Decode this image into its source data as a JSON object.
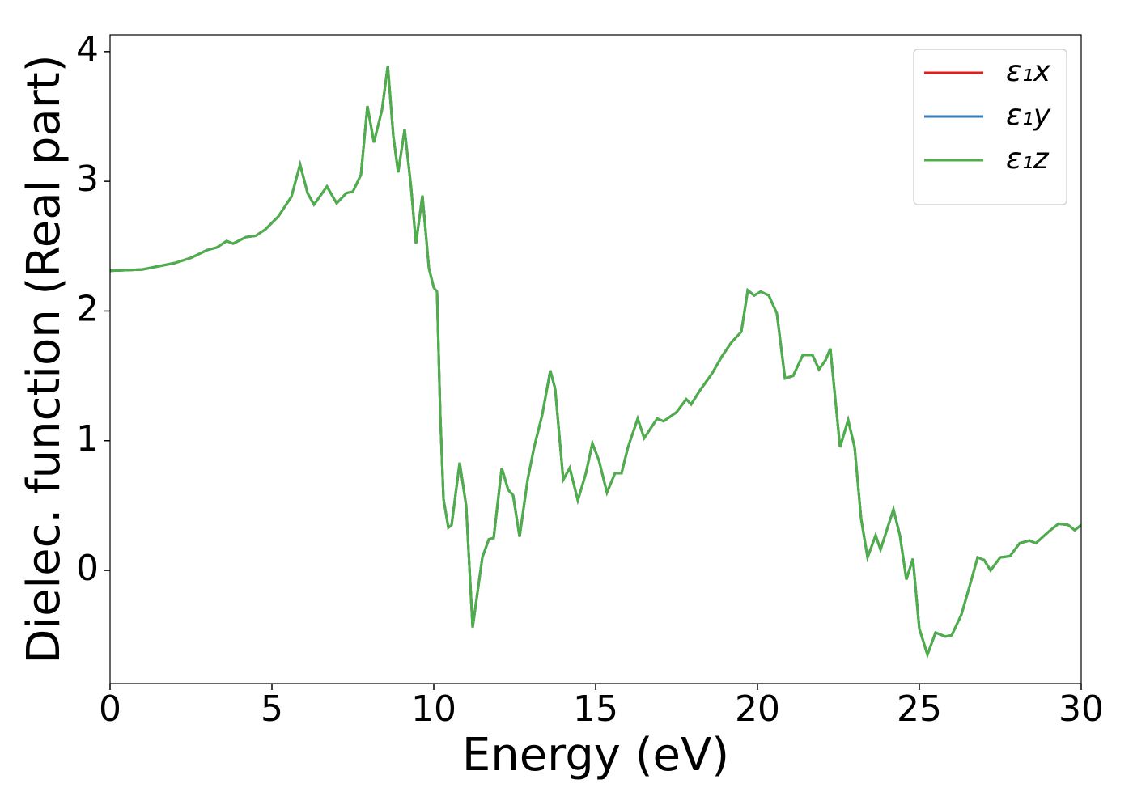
{
  "chart_data": {
    "type": "line",
    "xlabel": "Energy (eV)",
    "ylabel": "Dielec. function (Real part)",
    "x": [
      0,
      1,
      2,
      2.5,
      3,
      3.3,
      3.6,
      3.8,
      4.2,
      4.5,
      4.8,
      5.2,
      5.6,
      5.87,
      6.1,
      6.3,
      6.7,
      7.0,
      7.3,
      7.5,
      7.75,
      7.95,
      8.15,
      8.4,
      8.58,
      8.75,
      8.9,
      9.1,
      9.3,
      9.45,
      9.65,
      9.85,
      10.0,
      10.1,
      10.2,
      10.3,
      10.45,
      10.55,
      10.8,
      11.0,
      11.2,
      11.5,
      11.7,
      11.85,
      12.1,
      12.3,
      12.45,
      12.65,
      12.9,
      13.1,
      13.35,
      13.6,
      13.75,
      14.0,
      14.2,
      14.45,
      14.7,
      14.9,
      15.1,
      15.35,
      15.6,
      15.8,
      16.0,
      16.3,
      16.5,
      16.9,
      17.1,
      17.5,
      17.8,
      17.95,
      18.2,
      18.6,
      18.9,
      19.2,
      19.5,
      19.7,
      19.9,
      20.1,
      20.35,
      20.6,
      20.85,
      21.1,
      21.4,
      21.7,
      21.9,
      22.1,
      22.25,
      22.55,
      22.8,
      23.0,
      23.2,
      23.4,
      23.65,
      23.8,
      24.2,
      24.4,
      24.6,
      24.8,
      25.0,
      25.25,
      25.5,
      25.8,
      26.0,
      26.3,
      26.6,
      26.8,
      27.0,
      27.2,
      27.5,
      27.8,
      28.1,
      28.4,
      28.6,
      29.0,
      29.3,
      29.6,
      29.8,
      30.0
    ],
    "series": [
      {
        "name": "ε₁x",
        "color": "#e41a1c",
        "values": [
          2.31,
          2.32,
          2.37,
          2.41,
          2.47,
          2.49,
          2.54,
          2.52,
          2.57,
          2.58,
          2.63,
          2.73,
          2.88,
          3.13,
          2.91,
          2.82,
          2.96,
          2.83,
          2.91,
          2.92,
          3.05,
          3.58,
          3.3,
          3.55,
          3.89,
          3.35,
          3.07,
          3.4,
          2.95,
          2.52,
          2.89,
          2.33,
          2.18,
          2.15,
          1.2,
          0.55,
          0.33,
          0.35,
          0.83,
          0.5,
          -0.44,
          0.1,
          0.24,
          0.25,
          0.79,
          0.62,
          0.58,
          0.26,
          0.7,
          0.95,
          1.2,
          1.54,
          1.4,
          0.7,
          0.79,
          0.54,
          0.75,
          0.98,
          0.85,
          0.6,
          0.75,
          0.75,
          0.95,
          1.17,
          1.02,
          1.17,
          1.15,
          1.22,
          1.32,
          1.28,
          1.38,
          1.52,
          1.65,
          1.76,
          1.84,
          2.16,
          2.12,
          2.15,
          2.12,
          1.98,
          1.48,
          1.5,
          1.66,
          1.66,
          1.55,
          1.62,
          1.71,
          0.95,
          1.16,
          0.95,
          0.4,
          0.1,
          0.27,
          0.16,
          0.47,
          0.27,
          -0.07,
          0.09,
          -0.45,
          -0.65,
          -0.48,
          -0.51,
          -0.5,
          -0.34,
          -0.08,
          0.1,
          0.08,
          0.0,
          0.1,
          0.11,
          0.21,
          0.23,
          0.21,
          0.3,
          0.36,
          0.35,
          0.31,
          0.35
        ]
      },
      {
        "name": "ε₁y",
        "color": "#377eb8",
        "values": [
          2.31,
          2.32,
          2.37,
          2.41,
          2.47,
          2.49,
          2.54,
          2.52,
          2.57,
          2.58,
          2.63,
          2.73,
          2.88,
          3.13,
          2.91,
          2.82,
          2.96,
          2.83,
          2.91,
          2.92,
          3.05,
          3.58,
          3.3,
          3.55,
          3.89,
          3.35,
          3.07,
          3.4,
          2.95,
          2.52,
          2.89,
          2.33,
          2.18,
          2.15,
          1.2,
          0.55,
          0.33,
          0.35,
          0.83,
          0.5,
          -0.44,
          0.1,
          0.24,
          0.25,
          0.79,
          0.62,
          0.58,
          0.26,
          0.7,
          0.95,
          1.2,
          1.54,
          1.4,
          0.7,
          0.79,
          0.54,
          0.75,
          0.98,
          0.85,
          0.6,
          0.75,
          0.75,
          0.95,
          1.17,
          1.02,
          1.17,
          1.15,
          1.22,
          1.32,
          1.28,
          1.38,
          1.52,
          1.65,
          1.76,
          1.84,
          2.16,
          2.12,
          2.15,
          2.12,
          1.98,
          1.48,
          1.5,
          1.66,
          1.66,
          1.55,
          1.62,
          1.71,
          0.95,
          1.16,
          0.95,
          0.4,
          0.1,
          0.27,
          0.16,
          0.47,
          0.27,
          -0.07,
          0.09,
          -0.45,
          -0.65,
          -0.48,
          -0.51,
          -0.5,
          -0.34,
          -0.08,
          0.1,
          0.08,
          0.0,
          0.1,
          0.11,
          0.21,
          0.23,
          0.21,
          0.3,
          0.36,
          0.35,
          0.31,
          0.35
        ]
      },
      {
        "name": "ε₁z",
        "color": "#4daf4a",
        "values": [
          2.31,
          2.32,
          2.37,
          2.41,
          2.47,
          2.49,
          2.54,
          2.52,
          2.57,
          2.58,
          2.63,
          2.73,
          2.88,
          3.13,
          2.91,
          2.82,
          2.96,
          2.83,
          2.91,
          2.92,
          3.05,
          3.58,
          3.3,
          3.55,
          3.89,
          3.35,
          3.07,
          3.4,
          2.95,
          2.52,
          2.89,
          2.33,
          2.18,
          2.15,
          1.2,
          0.55,
          0.33,
          0.35,
          0.83,
          0.5,
          -0.44,
          0.1,
          0.24,
          0.25,
          0.79,
          0.62,
          0.58,
          0.26,
          0.7,
          0.95,
          1.2,
          1.54,
          1.4,
          0.7,
          0.79,
          0.54,
          0.75,
          0.98,
          0.85,
          0.6,
          0.75,
          0.75,
          0.95,
          1.17,
          1.02,
          1.17,
          1.15,
          1.22,
          1.32,
          1.28,
          1.38,
          1.52,
          1.65,
          1.76,
          1.84,
          2.16,
          2.12,
          2.15,
          2.12,
          1.98,
          1.48,
          1.5,
          1.66,
          1.66,
          1.55,
          1.62,
          1.71,
          0.95,
          1.16,
          0.95,
          0.4,
          0.1,
          0.27,
          0.16,
          0.47,
          0.27,
          -0.07,
          0.09,
          -0.45,
          -0.65,
          -0.48,
          -0.51,
          -0.5,
          -0.34,
          -0.08,
          0.1,
          0.08,
          0.0,
          0.1,
          0.11,
          0.21,
          0.23,
          0.21,
          0.3,
          0.36,
          0.35,
          0.31,
          0.35
        ]
      }
    ],
    "xlim": [
      0,
      30
    ],
    "xticks": [
      0,
      5,
      10,
      15,
      20,
      25,
      30
    ],
    "ylim": [
      -0.873,
      4.13
    ],
    "yticks": [
      0,
      1,
      2,
      3,
      4
    ],
    "grid": false,
    "legend": "upper right"
  }
}
